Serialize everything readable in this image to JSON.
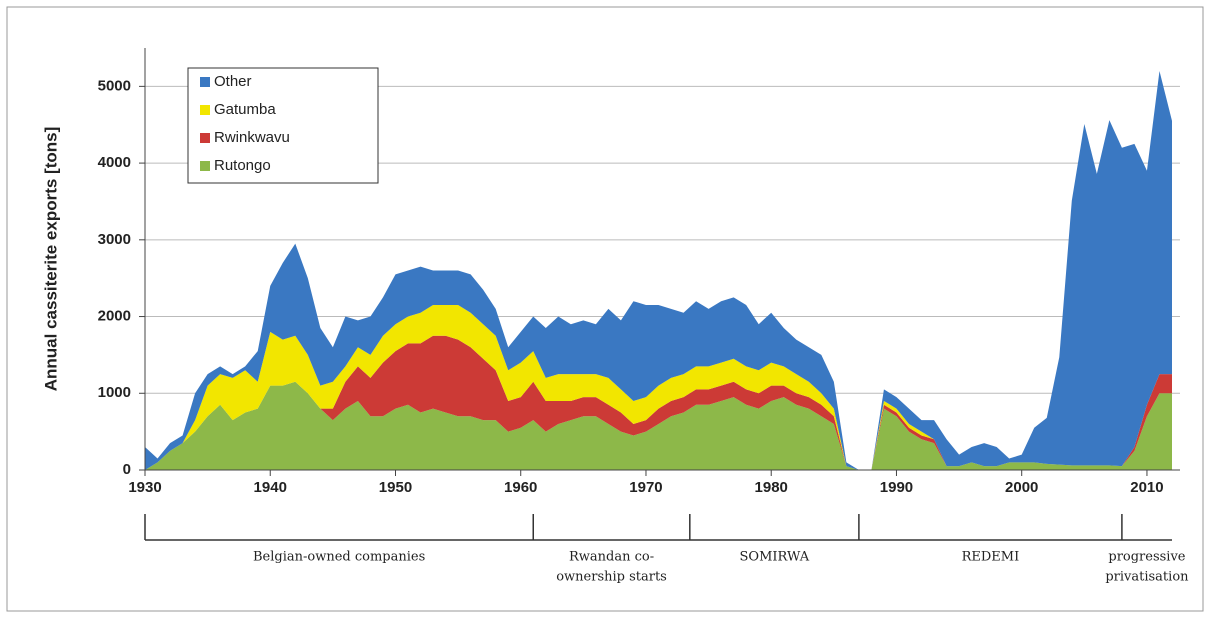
{
  "chart_data": {
    "type": "stacked_area",
    "ylabel": "Annual cassiterite exports [tons]",
    "x": [
      1930,
      1931,
      1932,
      1933,
      1934,
      1935,
      1936,
      1937,
      1938,
      1939,
      1940,
      1941,
      1942,
      1943,
      1944,
      1945,
      1946,
      1947,
      1948,
      1949,
      1950,
      1951,
      1952,
      1953,
      1954,
      1955,
      1956,
      1957,
      1958,
      1959,
      1960,
      1961,
      1962,
      1963,
      1964,
      1965,
      1966,
      1967,
      1968,
      1969,
      1970,
      1971,
      1972,
      1973,
      1974,
      1975,
      1976,
      1977,
      1978,
      1979,
      1980,
      1981,
      1982,
      1983,
      1984,
      1985,
      1986,
      1987,
      1988,
      1989,
      1990,
      1991,
      1992,
      1993,
      1994,
      1995,
      1996,
      1997,
      1998,
      1999,
      2000,
      2001,
      2002,
      2003,
      2004,
      2005,
      2006,
      2007,
      2008,
      2009,
      2010,
      2011,
      2012
    ],
    "series": [
      {
        "name": "Rutongo",
        "color": "#8db849",
        "values": [
          0,
          100,
          250,
          350,
          500,
          700,
          850,
          650,
          750,
          800,
          1100,
          1100,
          1150,
          1000,
          800,
          650,
          800,
          900,
          700,
          700,
          800,
          850,
          750,
          800,
          750,
          700,
          700,
          650,
          650,
          500,
          550,
          650,
          500,
          600,
          650,
          700,
          700,
          600,
          500,
          450,
          500,
          600,
          700,
          750,
          850,
          850,
          900,
          950,
          850,
          800,
          900,
          950,
          850,
          800,
          700,
          600,
          50,
          0,
          0,
          800,
          700,
          500,
          400,
          350,
          50,
          50,
          100,
          50,
          50,
          100,
          100,
          100,
          80,
          70,
          60,
          60,
          60,
          60,
          50,
          250,
          700,
          1000,
          1000
        ]
      },
      {
        "name": "Rwinkwavu",
        "color": "#cc3a36",
        "values": [
          0,
          0,
          0,
          0,
          0,
          0,
          0,
          0,
          0,
          0,
          0,
          0,
          0,
          0,
          0,
          150,
          350,
          450,
          500,
          700,
          750,
          800,
          900,
          950,
          1000,
          1000,
          900,
          800,
          650,
          400,
          400,
          500,
          400,
          300,
          250,
          250,
          250,
          250,
          250,
          150,
          150,
          200,
          200,
          200,
          200,
          200,
          200,
          200,
          200,
          200,
          200,
          150,
          150,
          150,
          150,
          100,
          0,
          0,
          0,
          50,
          50,
          50,
          50,
          50,
          0,
          0,
          0,
          0,
          0,
          0,
          0,
          0,
          0,
          0,
          0,
          0,
          0,
          0,
          0,
          50,
          150,
          250,
          250
        ]
      },
      {
        "name": "Gatumba",
        "color": "#f2e600",
        "values": [
          0,
          0,
          0,
          0,
          150,
          400,
          400,
          550,
          550,
          350,
          700,
          600,
          600,
          500,
          300,
          350,
          200,
          250,
          300,
          350,
          350,
          350,
          400,
          400,
          400,
          450,
          450,
          450,
          450,
          400,
          450,
          400,
          300,
          350,
          350,
          300,
          300,
          350,
          300,
          300,
          300,
          300,
          300,
          300,
          300,
          300,
          300,
          300,
          300,
          300,
          300,
          250,
          250,
          200,
          150,
          100,
          0,
          0,
          0,
          50,
          50,
          50,
          50,
          0,
          0,
          0,
          0,
          0,
          0,
          0,
          0,
          0,
          0,
          0,
          0,
          0,
          0,
          0,
          0,
          0,
          0,
          0,
          0
        ]
      },
      {
        "name": "Other",
        "color": "#3a78c2",
        "values": [
          300,
          50,
          100,
          100,
          350,
          150,
          100,
          50,
          50,
          400,
          600,
          1000,
          1200,
          1000,
          750,
          450,
          650,
          350,
          500,
          500,
          650,
          600,
          600,
          450,
          450,
          450,
          500,
          450,
          350,
          300,
          400,
          450,
          650,
          750,
          650,
          700,
          650,
          900,
          900,
          1300,
          1200,
          1050,
          900,
          800,
          850,
          750,
          800,
          800,
          800,
          600,
          650,
          500,
          450,
          450,
          500,
          350,
          50,
          0,
          0,
          150,
          150,
          200,
          150,
          250,
          350,
          150,
          200,
          300,
          250,
          50,
          100,
          450,
          600,
          1400,
          3450,
          4450,
          3800,
          4500,
          4150,
          3950,
          3050,
          3950,
          3300
        ]
      }
    ],
    "xlim": [
      1930,
      2012
    ],
    "ylim": [
      0,
      5500
    ],
    "xticks": [
      1930,
      1940,
      1950,
      1960,
      1970,
      1980,
      1990,
      2000,
      2010
    ],
    "yticks": [
      0,
      1000,
      2000,
      3000,
      4000,
      5000
    ],
    "grid": true,
    "legend": "upper left",
    "periods": [
      {
        "label_lines": [
          "Belgian-owned companies"
        ],
        "start": 1930,
        "end": 1961
      },
      {
        "label_lines": [
          "Rwandan co-",
          "ownership starts"
        ],
        "start": 1961,
        "end": 1973.5
      },
      {
        "label_lines": [
          "SOMIRWA"
        ],
        "start": 1973.5,
        "end": 1987
      },
      {
        "label_lines": [
          "REDEMI"
        ],
        "start": 1987,
        "end": 2008
      },
      {
        "label_lines": [
          "progressive",
          "privatisation"
        ],
        "start": 2008,
        "end": 2012
      }
    ]
  }
}
